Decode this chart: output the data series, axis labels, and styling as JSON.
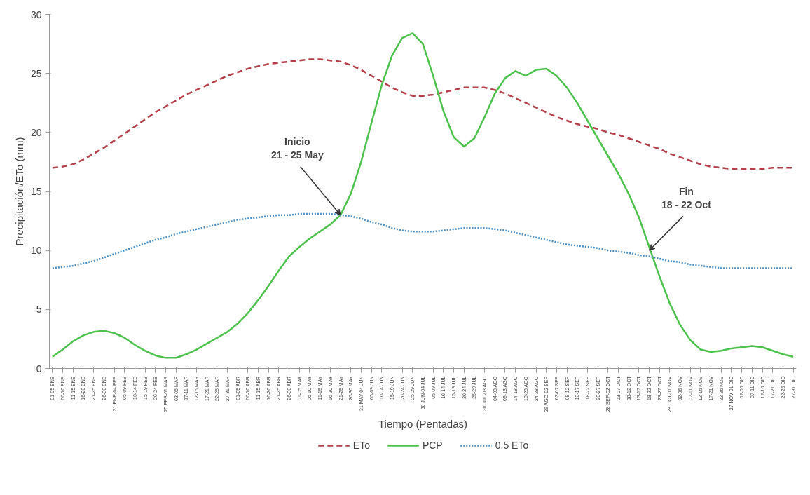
{
  "chart_data": {
    "type": "line",
    "xlabel": "Tiempo (Pentadas)",
    "ylabel": "Precipitación/ETo (mm)",
    "categories": [
      "01-05 ENE",
      "06-10 ENE",
      "11-15 ENE",
      "16-20 ENE",
      "21-25 ENE",
      "26-30 ENE",
      "31 ENE-04 FEB",
      "05-09 FEB",
      "10-14 FEB",
      "15-19 FEB",
      "20-24 FEB",
      "25 FEB-01 MAR",
      "02-06 MAR",
      "07-11 MAR",
      "12-16 MAR",
      "17-21 MAR",
      "22-26 MAR",
      "27-31 MAR",
      "01-05 ABR",
      "06-10 ABR",
      "11-15 ABR",
      "16-20 ABR",
      "21-25 ABR",
      "26-30 ABR",
      "01-05 MAY",
      "06-10 MAY",
      "11-15 MAY",
      "16-20 MAY",
      "21-25 MAY",
      "26-30 MAY",
      "31 MAY-04 JUN",
      "05-09 JUN",
      "10-14 JUN",
      "15-19 JUN",
      "20-24 JUN",
      "25-29 JUN",
      "30 JUN-04 JUL",
      "05-09 JUL",
      "10-14 JUL",
      "15-19 JUL",
      "20-24 JUL",
      "25-29 JUL",
      "30 JUL-03 AGO",
      "04-08 AGO",
      "09-13 AGO",
      "14-18 AGO",
      "19-23 AGO",
      "24-28 AGO",
      "29 AGO-02 SEP",
      "03-07 SEP",
      "08-12 SEP",
      "13-17 SEP",
      "18-22 SEP",
      "23-27 SEP",
      "28 SEP-02 OCT",
      "03-07 OCT",
      "08-12 OCT",
      "13-17 OCT",
      "18-22 OCT",
      "23-27 OCT",
      "28 OCT-01 NOV",
      "02-06 NOV",
      "07-11 NOV",
      "12-16 NOV",
      "17-21 NOV",
      "22-26 NOV",
      "27 NOV-01 DIC",
      "02-06 DIC",
      "07-11 DIC",
      "12-16 DIC",
      "17-21 DIC",
      "22-26 DIC",
      "27-31 DIC"
    ],
    "series": [
      {
        "name": "ETo",
        "color": "#b5404a",
        "line_style": "dashed",
        "values": [
          17.0,
          17.1,
          17.3,
          17.7,
          18.2,
          18.7,
          19.3,
          19.9,
          20.5,
          21.1,
          21.7,
          22.2,
          22.7,
          23.2,
          23.6,
          24.0,
          24.4,
          24.8,
          25.1,
          25.4,
          25.6,
          25.8,
          25.9,
          26.0,
          26.1,
          26.2,
          26.2,
          26.1,
          26.0,
          25.7,
          25.3,
          24.8,
          24.3,
          23.8,
          23.4,
          23.1,
          23.1,
          23.2,
          23.4,
          23.6,
          23.8,
          23.8,
          23.8,
          23.6,
          23.3,
          22.9,
          22.5,
          22.1,
          21.7,
          21.3,
          21.0,
          20.7,
          20.5,
          20.3,
          20.0,
          19.8,
          19.5,
          19.2,
          18.9,
          18.6,
          18.2,
          17.9,
          17.6,
          17.3,
          17.1,
          17.0,
          16.9,
          16.9,
          16.9,
          16.9,
          17.0,
          17.0,
          17.0
        ]
      },
      {
        "name": "PCP",
        "color": "#4cc24c",
        "line_style": "solid",
        "values": [
          1.0,
          1.6,
          2.3,
          2.8,
          3.1,
          3.2,
          3.0,
          2.6,
          2.0,
          1.5,
          1.1,
          0.9,
          0.9,
          1.2,
          1.6,
          2.1,
          2.6,
          3.1,
          3.8,
          4.7,
          5.8,
          7.0,
          8.3,
          9.5,
          10.3,
          11.0,
          11.6,
          12.2,
          13.0,
          14.8,
          17.5,
          20.8,
          24.0,
          26.5,
          28.0,
          28.4,
          27.5,
          24.8,
          21.8,
          19.6,
          18.8,
          19.5,
          21.3,
          23.3,
          24.6,
          25.2,
          24.8,
          25.3,
          25.4,
          24.8,
          23.8,
          22.5,
          21.0,
          19.5,
          18.0,
          16.5,
          14.8,
          12.8,
          10.3,
          7.8,
          5.5,
          3.7,
          2.4,
          1.6,
          1.4,
          1.5,
          1.7,
          1.8,
          1.9,
          1.8,
          1.5,
          1.2,
          1.0
        ]
      },
      {
        "name": "0.5 ETo",
        "color": "#4a8ec4",
        "line_style": "dotted",
        "values": [
          8.5,
          8.6,
          8.7,
          8.9,
          9.1,
          9.4,
          9.7,
          10.0,
          10.3,
          10.6,
          10.9,
          11.1,
          11.4,
          11.6,
          11.8,
          12.0,
          12.2,
          12.4,
          12.6,
          12.7,
          12.8,
          12.9,
          13.0,
          13.0,
          13.1,
          13.1,
          13.1,
          13.1,
          13.0,
          12.9,
          12.7,
          12.4,
          12.2,
          11.9,
          11.7,
          11.6,
          11.6,
          11.6,
          11.7,
          11.8,
          11.9,
          11.9,
          11.9,
          11.8,
          11.7,
          11.5,
          11.3,
          11.1,
          10.9,
          10.7,
          10.5,
          10.4,
          10.3,
          10.2,
          10.0,
          9.9,
          9.8,
          9.6,
          9.5,
          9.3,
          9.1,
          9.0,
          8.8,
          8.7,
          8.6,
          8.5,
          8.5,
          8.5,
          8.5,
          8.5,
          8.5,
          8.5,
          8.5
        ]
      }
    ],
    "ylim": [
      0,
      30
    ],
    "yticks": [
      0,
      5,
      10,
      15,
      20,
      25,
      30
    ],
    "grid": false,
    "legend": "bottom",
    "marker": "none",
    "annotations": [
      {
        "text": "Inicio\n21 - 25 May",
        "x": "21-25 MAY",
        "y": 13.0
      },
      {
        "text": "Fin\n18 - 22 Oct",
        "x": "18-22 OCT",
        "y": 10.0
      }
    ]
  }
}
